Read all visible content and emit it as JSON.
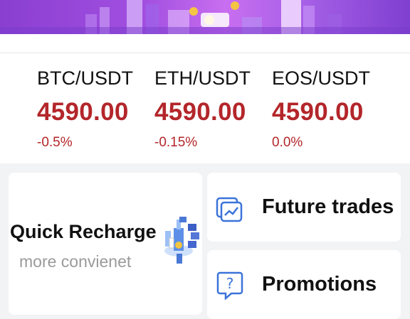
{
  "banner": {
    "illustration": "crypto-city-illustration"
  },
  "tickers": [
    {
      "pair": "BTC/USDT",
      "price": "4590.00",
      "change": "-0.5%"
    },
    {
      "pair": "ETH/USDT",
      "price": "4590.00",
      "change": "-0.15%"
    },
    {
      "pair": "EOS/USDT",
      "price": "4590.00",
      "change": "0.0%"
    }
  ],
  "cards": {
    "recharge": {
      "title": "Quick Recharge",
      "subtitle": "more convienet",
      "icon": "blockchain-illustration"
    },
    "future": {
      "label": "Future trades",
      "icon": "chart-icon"
    },
    "promotions": {
      "label": "Promotions",
      "icon": "help-icon"
    }
  },
  "colors": {
    "price": "#b3262a",
    "banner_purple": "#a24fe0",
    "icon_blue": "#3b73d9"
  }
}
